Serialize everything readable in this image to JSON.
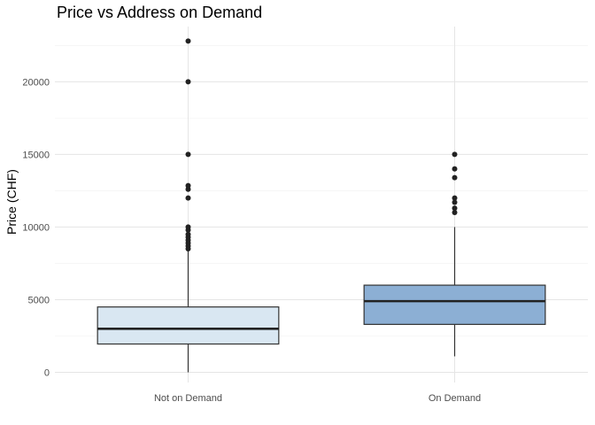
{
  "chart_data": {
    "type": "boxplot",
    "title": "Price vs Address on Demand",
    "xlabel": "",
    "ylabel": "Price (CHF)",
    "ylim": [
      -700,
      23800
    ],
    "y_ticks": [
      0,
      5000,
      10000,
      15000,
      20000
    ],
    "y_tick_labels": [
      "0",
      "5000",
      "10000",
      "15000",
      "20000"
    ],
    "grid": true,
    "legend": "none",
    "categories": [
      "Not on Demand",
      "On Demand"
    ],
    "boxes": [
      {
        "category": "Not on Demand",
        "whisker_low": 0,
        "q1": 1950,
        "median": 3000,
        "q3": 4500,
        "whisker_high": 8400,
        "outliers": [
          8500,
          8700,
          8900,
          9100,
          9300,
          9500,
          9800,
          10000,
          12000,
          12600,
          12850,
          15000,
          20000,
          22800
        ],
        "fill": "#d9e7f2"
      },
      {
        "category": "On Demand",
        "whisker_low": 1100,
        "q1": 3300,
        "median": 4900,
        "q3": 6000,
        "whisker_high": 10000,
        "outliers": [
          11000,
          11300,
          11700,
          12000,
          13400,
          14000,
          15000
        ],
        "fill": "#8cafd4"
      }
    ],
    "colors": {
      "outline": "#333333",
      "median": "#222222",
      "outlier": "#222222",
      "grid_major": "#e5e5e5",
      "grid_minor": "#f1f1f1"
    }
  }
}
